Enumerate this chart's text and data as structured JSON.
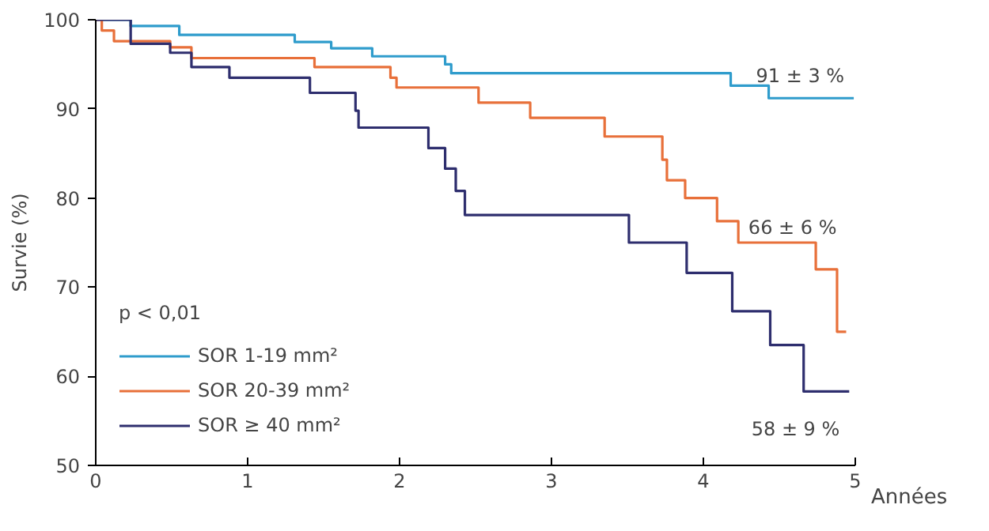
{
  "chart_data": {
    "type": "step",
    "xlabel": "Années",
    "ylabel": "Survie (%)",
    "legend_title": "p < 0,01",
    "legend": "bottom left",
    "grid": false,
    "xlim": [
      0,
      5
    ],
    "ylim": [
      50,
      100
    ],
    "xticks": [
      0,
      1,
      2,
      3,
      4,
      5
    ],
    "yticks": [
      50,
      60,
      70,
      80,
      90,
      100
    ],
    "series": [
      {
        "name": "SOR 1-19 mm²",
        "color": "#2f9ccc",
        "x": [
          0,
          0.23,
          0.55,
          1.31,
          1.55,
          1.82,
          2.3,
          2.34,
          4.18,
          4.43,
          4.99
        ],
        "values": [
          100,
          99.3,
          98.3,
          97.5,
          96.8,
          95.9,
          95,
          94,
          92.6,
          91.2,
          91.2
        ]
      },
      {
        "name": "SOR 20-39 mm²",
        "color": "#e8703a",
        "x": [
          0,
          0.04,
          0.12,
          0.49,
          0.63,
          1.44,
          1.94,
          1.98,
          2.52,
          2.86,
          3.35,
          3.73,
          3.76,
          3.88,
          4.09,
          4.23,
          4.74,
          4.88,
          4.94
        ],
        "values": [
          100,
          98.8,
          97.6,
          96.9,
          95.7,
          94.7,
          93.5,
          92.4,
          90.7,
          89,
          86.9,
          84.3,
          82,
          80,
          77.4,
          75,
          72,
          65,
          65
        ]
      },
      {
        "name": "SOR ≥ 40 mm²",
        "color": "#2e2e6e",
        "x": [
          0,
          0.23,
          0.49,
          0.63,
          0.88,
          1.41,
          1.71,
          1.73,
          2.19,
          2.3,
          2.37,
          2.43,
          3.51,
          3.89,
          4.19,
          4.44,
          4.66,
          4.96
        ],
        "values": [
          100,
          97.3,
          96.3,
          94.7,
          93.5,
          91.8,
          89.8,
          87.9,
          85.6,
          83.3,
          80.8,
          78.1,
          75,
          71.6,
          67.3,
          63.5,
          58.3,
          58.3
        ]
      }
    ],
    "annotations": [
      "91 ± 3 %",
      "66 ± 6 %",
      "58 ± 9 %"
    ]
  }
}
